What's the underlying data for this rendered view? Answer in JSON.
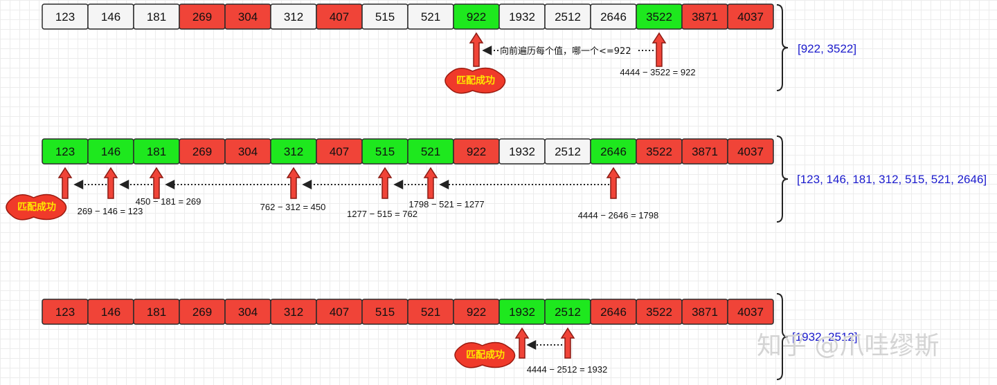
{
  "palette": {
    "red": "#f04438",
    "green": "#1ee81e",
    "white": "#f5f5f5",
    "border": "#2a2a2a",
    "arrow_fill": "#f04438",
    "badge_fill": "#f03a2a",
    "badge_text": "#ffe800",
    "result_text": "#1a1acc",
    "watermark": "#d4d4d4"
  },
  "rows": [
    {
      "values": [
        "123",
        "146",
        "181",
        "269",
        "304",
        "312",
        "407",
        "515",
        "521",
        "922",
        "1932",
        "2512",
        "2646",
        "3522",
        "3871",
        "4037"
      ],
      "states": [
        "white",
        "white",
        "white",
        "red",
        "red",
        "white",
        "red",
        "white",
        "white",
        "green",
        "white",
        "white",
        "white",
        "green",
        "red",
        "red"
      ],
      "result": "[922, 3522]",
      "note": "向前遍历每个值，哪一个<=922",
      "calcs": [
        "4444 − 3522 = 922"
      ],
      "badge": "匹配成功"
    },
    {
      "values": [
        "123",
        "146",
        "181",
        "269",
        "304",
        "312",
        "407",
        "515",
        "521",
        "922",
        "1932",
        "2512",
        "2646",
        "3522",
        "3871",
        "4037"
      ],
      "states": [
        "green",
        "green",
        "green",
        "red",
        "red",
        "green",
        "red",
        "green",
        "green",
        "red",
        "white",
        "white",
        "green",
        "red",
        "red",
        "red"
      ],
      "result": "[123, 146, 181, 312, 515, 521,  2646]",
      "calcs": [
        "269 − 146 = 123",
        "450 − 181 = 269",
        "762 − 312 = 450",
        "1277 − 515 = 762",
        "1798 − 521 = 1277",
        "4444 − 2646 = 1798"
      ],
      "badge": "匹配成功"
    },
    {
      "values": [
        "123",
        "146",
        "181",
        "269",
        "304",
        "312",
        "407",
        "515",
        "521",
        "922",
        "1932",
        "2512",
        "2646",
        "3522",
        "3871",
        "4037"
      ],
      "states": [
        "red",
        "red",
        "red",
        "red",
        "red",
        "red",
        "red",
        "red",
        "red",
        "red",
        "green",
        "green",
        "red",
        "red",
        "red",
        "red"
      ],
      "result": "[1932, 2512]",
      "calcs": [
        "4444 − 2512 = 1932"
      ],
      "badge": "匹配成功"
    }
  ],
  "watermark": "知乎 @爪哇缪斯"
}
